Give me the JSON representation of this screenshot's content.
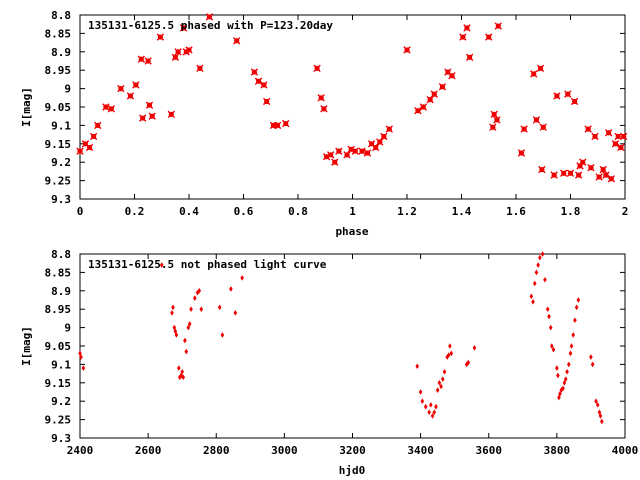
{
  "colors": {
    "points": "#ee0000",
    "frame": "#000000"
  },
  "chart_data": [
    {
      "type": "scatter",
      "title": "135131-6125.5 phased with P=123.20day",
      "xlabel": "phase",
      "ylabel": "I[mag]",
      "xlim": [
        0,
        2
      ],
      "ylim": [
        9.3,
        8.8
      ],
      "y_inverted": true,
      "xticks": [
        "0",
        "0.2",
        "0.4",
        "0.6",
        "0.8",
        "1",
        "1.2",
        "1.4",
        "1.6",
        "1.8",
        "2"
      ],
      "yticks": [
        "8.8",
        "8.85",
        "8.9",
        "8.95",
        "9",
        "9.05",
        "9.1",
        "9.15",
        "9.2",
        "9.25",
        "9.3"
      ],
      "grid": false,
      "marker": "filled circle with cross",
      "points": [
        [
          0.0,
          9.17
        ],
        [
          0.02,
          9.15
        ],
        [
          0.035,
          9.16
        ],
        [
          0.05,
          9.13
        ],
        [
          0.065,
          9.1
        ],
        [
          0.095,
          9.05
        ],
        [
          0.115,
          9.055
        ],
        [
          0.15,
          9.0
        ],
        [
          0.185,
          9.02
        ],
        [
          0.205,
          8.99
        ],
        [
          0.225,
          8.92
        ],
        [
          0.23,
          9.08
        ],
        [
          0.25,
          8.925
        ],
        [
          0.255,
          9.045
        ],
        [
          0.265,
          9.075
        ],
        [
          0.295,
          8.86
        ],
        [
          0.335,
          9.07
        ],
        [
          0.35,
          8.915
        ],
        [
          0.36,
          8.9
        ],
        [
          0.38,
          8.835
        ],
        [
          0.39,
          8.9
        ],
        [
          0.4,
          8.895
        ],
        [
          0.44,
          8.945
        ],
        [
          0.475,
          8.805
        ],
        [
          0.575,
          8.87
        ],
        [
          0.64,
          8.955
        ],
        [
          0.655,
          8.98
        ],
        [
          0.675,
          8.99
        ],
        [
          0.685,
          9.035
        ],
        [
          0.71,
          9.1
        ],
        [
          0.725,
          9.1
        ],
        [
          0.755,
          9.095
        ],
        [
          0.87,
          8.945
        ],
        [
          0.885,
          9.025
        ],
        [
          0.895,
          9.055
        ],
        [
          0.905,
          9.185
        ],
        [
          0.92,
          9.18
        ],
        [
          0.935,
          9.2
        ],
        [
          0.95,
          9.17
        ],
        [
          0.98,
          9.18
        ],
        [
          0.995,
          9.165
        ],
        [
          1.01,
          9.17
        ],
        [
          1.035,
          9.17
        ],
        [
          1.055,
          9.175
        ],
        [
          1.07,
          9.15
        ],
        [
          1.085,
          9.16
        ],
        [
          1.1,
          9.145
        ],
        [
          1.115,
          9.13
        ],
        [
          1.135,
          9.11
        ],
        [
          1.2,
          8.895
        ],
        [
          1.24,
          9.06
        ],
        [
          1.26,
          9.05
        ],
        [
          1.285,
          9.03
        ],
        [
          1.3,
          9.015
        ],
        [
          1.33,
          8.995
        ],
        [
          1.35,
          8.955
        ],
        [
          1.365,
          8.965
        ],
        [
          1.405,
          8.86
        ],
        [
          1.42,
          8.835
        ],
        [
          1.43,
          8.915
        ],
        [
          1.5,
          8.86
        ],
        [
          1.515,
          9.105
        ],
        [
          1.52,
          9.07
        ],
        [
          1.53,
          9.085
        ],
        [
          1.535,
          8.83
        ],
        [
          1.62,
          9.175
        ],
        [
          1.63,
          9.11
        ],
        [
          1.665,
          8.96
        ],
        [
          1.675,
          9.085
        ],
        [
          1.69,
          8.945
        ],
        [
          1.695,
          9.22
        ],
        [
          1.7,
          9.105
        ],
        [
          1.74,
          9.235
        ],
        [
          1.75,
          9.02
        ],
        [
          1.775,
          9.23
        ],
        [
          1.79,
          9.015
        ],
        [
          1.8,
          9.23
        ],
        [
          1.815,
          9.035
        ],
        [
          1.83,
          9.235
        ],
        [
          1.835,
          9.21
        ],
        [
          1.845,
          9.2
        ],
        [
          1.865,
          9.11
        ],
        [
          1.875,
          9.215
        ],
        [
          1.89,
          9.13
        ],
        [
          1.905,
          9.24
        ],
        [
          1.92,
          9.22
        ],
        [
          1.93,
          9.235
        ],
        [
          1.94,
          9.12
        ],
        [
          1.95,
          9.245
        ],
        [
          1.965,
          9.15
        ],
        [
          1.975,
          9.13
        ],
        [
          1.985,
          9.16
        ],
        [
          1.995,
          9.13
        ]
      ]
    },
    {
      "type": "scatter",
      "title": "135131-6125.5 not phased light curve",
      "xlabel": "hjd0",
      "ylabel": "I[mag]",
      "xlim": [
        2400,
        4000
      ],
      "ylim": [
        9.3,
        8.8
      ],
      "y_inverted": true,
      "xticks": [
        "2400",
        "2600",
        "2800",
        "3000",
        "3200",
        "3400",
        "3600",
        "3800",
        "4000"
      ],
      "yticks": [
        "8.8",
        "8.85",
        "8.9",
        "8.95",
        "9",
        "9.05",
        "9.1",
        "9.15",
        "9.2",
        "9.25",
        "9.3"
      ],
      "grid": false,
      "marker": "small diamond",
      "points": [
        [
          2400,
          9.07
        ],
        [
          2403,
          9.08
        ],
        [
          2410,
          9.11
        ],
        [
          2640,
          8.83
        ],
        [
          2670,
          8.96
        ],
        [
          2673,
          8.945
        ],
        [
          2677,
          9.0
        ],
        [
          2680,
          9.01
        ],
        [
          2683,
          9.02
        ],
        [
          2690,
          9.11
        ],
        [
          2693,
          9.135
        ],
        [
          2697,
          9.13
        ],
        [
          2700,
          9.12
        ],
        [
          2703,
          9.135
        ],
        [
          2708,
          9.035
        ],
        [
          2712,
          9.065
        ],
        [
          2718,
          9.0
        ],
        [
          2722,
          8.99
        ],
        [
          2726,
          8.95
        ],
        [
          2737,
          8.92
        ],
        [
          2745,
          8.905
        ],
        [
          2750,
          8.9
        ],
        [
          2756,
          8.95
        ],
        [
          2810,
          8.945
        ],
        [
          2818,
          9.02
        ],
        [
          2843,
          8.895
        ],
        [
          2856,
          8.96
        ],
        [
          2876,
          8.865
        ],
        [
          3390,
          9.105
        ],
        [
          3400,
          9.175
        ],
        [
          3405,
          9.2
        ],
        [
          3415,
          9.215
        ],
        [
          3425,
          9.23
        ],
        [
          3430,
          9.21
        ],
        [
          3435,
          9.24
        ],
        [
          3440,
          9.23
        ],
        [
          3445,
          9.215
        ],
        [
          3450,
          9.17
        ],
        [
          3455,
          9.15
        ],
        [
          3460,
          9.16
        ],
        [
          3465,
          9.14
        ],
        [
          3470,
          9.12
        ],
        [
          3478,
          9.08
        ],
        [
          3482,
          9.075
        ],
        [
          3486,
          9.05
        ],
        [
          3490,
          9.07
        ],
        [
          3535,
          9.1
        ],
        [
          3540,
          9.095
        ],
        [
          3558,
          9.055
        ],
        [
          3725,
          8.915
        ],
        [
          3730,
          8.93
        ],
        [
          3735,
          8.88
        ],
        [
          3740,
          8.85
        ],
        [
          3745,
          8.83
        ],
        [
          3750,
          8.81
        ],
        [
          3758,
          8.8
        ],
        [
          3765,
          8.87
        ],
        [
          3773,
          8.95
        ],
        [
          3777,
          8.97
        ],
        [
          3782,
          9.0
        ],
        [
          3785,
          9.05
        ],
        [
          3790,
          9.06
        ],
        [
          3800,
          9.11
        ],
        [
          3803,
          9.13
        ],
        [
          3806,
          9.19
        ],
        [
          3809,
          9.18
        ],
        [
          3813,
          9.17
        ],
        [
          3818,
          9.165
        ],
        [
          3822,
          9.15
        ],
        [
          3826,
          9.14
        ],
        [
          3830,
          9.12
        ],
        [
          3835,
          9.1
        ],
        [
          3840,
          9.07
        ],
        [
          3843,
          9.05
        ],
        [
          3848,
          9.02
        ],
        [
          3853,
          8.98
        ],
        [
          3858,
          8.945
        ],
        [
          3863,
          8.925
        ],
        [
          3900,
          9.08
        ],
        [
          3905,
          9.1
        ],
        [
          3915,
          9.2
        ],
        [
          3920,
          9.21
        ],
        [
          3925,
          9.23
        ],
        [
          3928,
          9.24
        ],
        [
          3932,
          9.255
        ]
      ]
    }
  ]
}
